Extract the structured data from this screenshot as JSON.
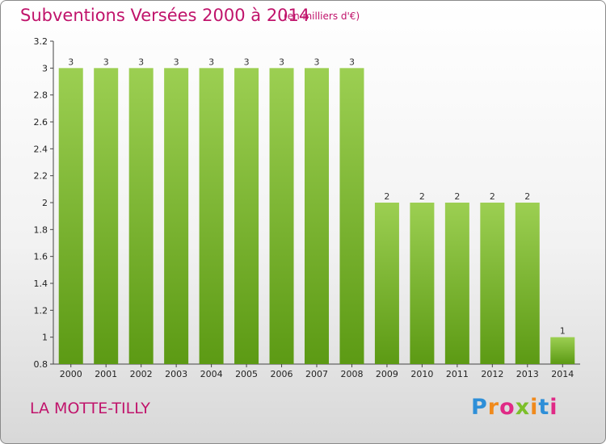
{
  "header": {
    "title": "Subventions Versées 2000 à 2014",
    "subtitle": "(en milliers d'€)"
  },
  "footer": {
    "location": "LA MOTTE-TILLY",
    "brand": "Proxiti",
    "brand_colors": [
      "#2e8fd8",
      "#f08a1c",
      "#e02a86",
      "#7cbf2a",
      "#f08a1c",
      "#2e8fd8",
      "#e02a86"
    ]
  },
  "colors": {
    "bar_top": "#9ccf52",
    "bar_bottom": "#5c9a14",
    "accent": "#c0136b"
  },
  "chart_data": {
    "type": "bar",
    "categories": [
      "2000",
      "2001",
      "2002",
      "2003",
      "2004",
      "2005",
      "2006",
      "2007",
      "2008",
      "2009",
      "2010",
      "2011",
      "2012",
      "2013",
      "2014"
    ],
    "values": [
      3,
      3,
      3,
      3,
      3,
      3,
      3,
      3,
      3,
      2,
      2,
      2,
      2,
      2,
      1
    ],
    "data_labels": [
      "3",
      "3",
      "3",
      "3",
      "3",
      "3",
      "3",
      "3",
      "3",
      "2",
      "2",
      "2",
      "2",
      "2",
      "1"
    ],
    "title": "Subventions Versées 2000 à 2014",
    "subtitle": "(en milliers d'€)",
    "xlabel": "",
    "ylabel": "",
    "ylim": [
      0.8,
      3.2
    ],
    "yticks": [
      0.8,
      1,
      1.2,
      1.4,
      1.6,
      1.8,
      2,
      2.2,
      2.4,
      2.6,
      2.8,
      3,
      3.2
    ],
    "ytick_labels": [
      "0.8",
      "1",
      "1.2",
      "1.4",
      "1.6",
      "1.8",
      "2",
      "2.2",
      "2.4",
      "2.6",
      "2.8",
      "3",
      "3.2"
    ],
    "grid": false,
    "legend": "none"
  }
}
